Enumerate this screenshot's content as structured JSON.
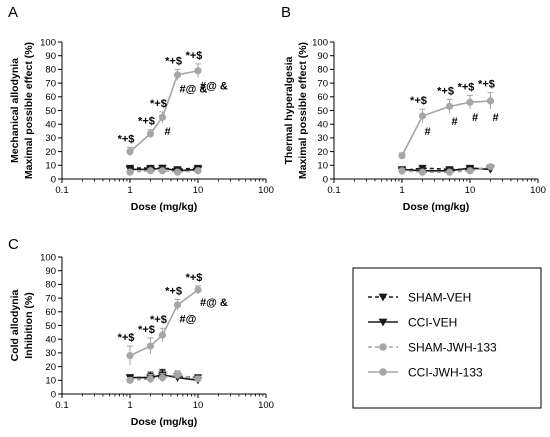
{
  "colors": {
    "veh": "#1a1a1a",
    "jwh": "#a6a6a6",
    "axis": "#000000"
  },
  "legend": {
    "items": [
      {
        "label": "SHAM-VEH",
        "marker": "triangle-down",
        "dashed": true,
        "color": "#1a1a1a"
      },
      {
        "label": "CCI-VEH",
        "marker": "triangle-down",
        "dashed": false,
        "color": "#1a1a1a"
      },
      {
        "label": "SHAM-JWH-133",
        "marker": "circle",
        "dashed": true,
        "color": "#a6a6a6"
      },
      {
        "label": "CCI-JWH-133",
        "marker": "circle",
        "dashed": false,
        "color": "#a6a6a6"
      }
    ]
  },
  "chart_data": [
    {
      "panel": "A",
      "type": "line",
      "xscale": "log",
      "xlim": [
        0.1,
        100
      ],
      "ylim": [
        0,
        100
      ],
      "xticks": [
        "0.1",
        "1",
        "10",
        "100"
      ],
      "yticks": [
        "0",
        "10",
        "20",
        "30",
        "40",
        "50",
        "60",
        "70",
        "80",
        "90",
        "100"
      ],
      "xlabel": "Dose (mg/kg)",
      "ylabel": [
        "Mechanical allodynia",
        "Maximal possible effect (%)"
      ],
      "x": [
        1,
        2,
        3,
        5,
        10
      ],
      "series": [
        {
          "name": "SHAM-VEH",
          "values": [
            8,
            8,
            8,
            7,
            8
          ],
          "err": [
            1.5,
            1.5,
            2,
            1.5,
            1.5
          ]
        },
        {
          "name": "CCI-VEH",
          "values": [
            7,
            7,
            8,
            6,
            7
          ],
          "err": [
            1.5,
            1.5,
            1.5,
            1.5,
            1.5
          ]
        },
        {
          "name": "SHAM-JWH-133",
          "values": [
            5,
            6,
            6,
            5,
            6
          ],
          "err": [
            1,
            1,
            1,
            1,
            1
          ]
        },
        {
          "name": "CCI-JWH-133",
          "values": [
            20,
            33,
            45,
            76,
            79
          ],
          "err": [
            3,
            3,
            4,
            4,
            5
          ]
        }
      ],
      "annotations_top": [
        "*+$",
        "*+$",
        "*+$",
        "*+$",
        "*+$"
      ],
      "annotations_bottom": [
        "",
        "",
        "#",
        "#@ &",
        "#@ &"
      ]
    },
    {
      "panel": "B",
      "type": "line",
      "xscale": "log",
      "xlim": [
        0.1,
        100
      ],
      "ylim": [
        0,
        100
      ],
      "xticks": [
        "0.1",
        "1",
        "10",
        "100"
      ],
      "yticks": [
        "0",
        "10",
        "20",
        "30",
        "40",
        "50",
        "60",
        "70",
        "80",
        "90",
        "100"
      ],
      "xlabel": "Dose (mg/kg)",
      "ylabel": [
        "Thermal hyperalgesia",
        "Maximal possible effect (%)"
      ],
      "x": [
        1,
        2,
        5,
        10,
        20
      ],
      "series": [
        {
          "name": "SHAM-VEH",
          "values": [
            6,
            8,
            7,
            7,
            8
          ],
          "err": [
            1.5,
            1.5,
            1.5,
            1.5,
            1.5
          ]
        },
        {
          "name": "CCI-VEH",
          "values": [
            7,
            6,
            6,
            8,
            7
          ],
          "err": [
            1.5,
            1.5,
            1.5,
            1.5,
            1.5
          ]
        },
        {
          "name": "SHAM-JWH-133",
          "values": [
            6,
            5,
            5,
            6,
            9
          ],
          "err": [
            1,
            1,
            1,
            1,
            1.5
          ]
        },
        {
          "name": "CCI-JWH-133",
          "values": [
            17,
            46,
            53,
            56,
            57
          ],
          "err": [
            2,
            5,
            5,
            5,
            6
          ]
        }
      ],
      "annotations_top": [
        "",
        "*+$",
        "*+$",
        "*+$",
        "*+$"
      ],
      "annotations_bottom": [
        "",
        "#",
        "#",
        "#",
        "#"
      ]
    },
    {
      "panel": "C",
      "type": "line",
      "xscale": "log",
      "xlim": [
        0.1,
        100
      ],
      "ylim": [
        0,
        100
      ],
      "xticks": [
        "0.1",
        "1",
        "10",
        "100"
      ],
      "yticks": [
        "0",
        "10",
        "20",
        "30",
        "40",
        "50",
        "60",
        "70",
        "80",
        "90",
        "100"
      ],
      "xlabel": "Dose (mg/kg)",
      "ylabel": [
        "Cold allodynia",
        "Inhibition (%)"
      ],
      "x": [
        1,
        2,
        3,
        5,
        10
      ],
      "series": [
        {
          "name": "SHAM-VEH",
          "values": [
            12,
            12,
            13,
            13,
            12
          ],
          "err": [
            2,
            4,
            4,
            3,
            2
          ]
        },
        {
          "name": "CCI-VEH",
          "values": [
            12,
            12,
            14,
            12,
            10
          ],
          "err": [
            2,
            3,
            4,
            3,
            2
          ]
        },
        {
          "name": "SHAM-JWH-133",
          "values": [
            10,
            11,
            12,
            14,
            11
          ],
          "err": [
            2,
            3,
            3,
            3,
            2
          ]
        },
        {
          "name": "CCI-JWH-133",
          "values": [
            28,
            35,
            43,
            65,
            76
          ],
          "err": [
            7,
            6,
            5,
            4,
            3
          ]
        }
      ],
      "annotations_top": [
        "*+$",
        "*+$",
        "*+$",
        "*+$",
        "*+$"
      ],
      "annotations_bottom": [
        "",
        "",
        "",
        "#@",
        "#@ &"
      ]
    }
  ]
}
